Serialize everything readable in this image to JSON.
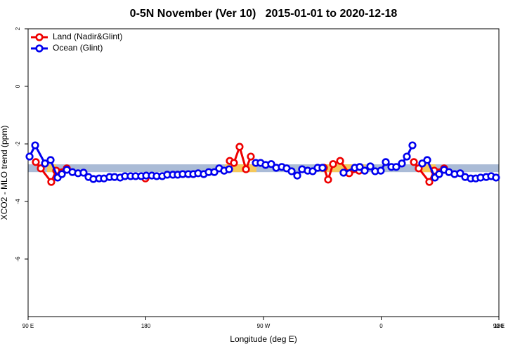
{
  "chart_data": {
    "type": "line",
    "title": "0-5N November (Ver 10)   2015-01-01 to 2020-12-18",
    "x_label": "Longitude (deg E)",
    "y_label": "XCO2 - MLO trend (ppm)",
    "xlim": [
      90,
      450
    ],
    "xticks": [
      {
        "value": 90,
        "label": "90 E"
      },
      180,
      {
        "value": 270,
        "label": "90 W"
      },
      {
        "value": 360,
        "label": "0"
      },
      {
        "value": 450,
        "label": "90 E"
      },
      {
        "value": 450,
        "label": "180"
      }
    ],
    "ylim": [
      -8,
      2
    ],
    "yticks": [
      2,
      0,
      -2,
      -4,
      -6
    ],
    "legend": "top-left",
    "band": {
      "range": [
        -2.98,
        -2.71
      ],
      "color": "#aabbd6",
      "land_color": "#f5c85a",
      "land_spans": [
        [
          104.5,
          111.5
        ],
        [
          240.5,
          264.6
        ],
        [
          313,
          348
        ],
        [
          388,
          401.6
        ]
      ]
    },
    "series": [
      {
        "name": "Land (Nadir&Glint)",
        "color": "#ee0000",
        "x": [
          95.9,
          99.7,
          107.7,
          111.5,
          119.6,
          null,
          179.7,
          null,
          244.2,
          247.4,
          251.7,
          256.6,
          260.3,
          null,
          316.2,
          319.4,
          323.2,
          328.6,
          335.5,
          343.1,
          null,
          385.0,
          388.7,
          396.8,
          400.6,
          408.1
        ],
        "values": [
          -2.63,
          -2.85,
          -3.32,
          -2.93,
          -2.85,
          null,
          -3.2,
          null,
          -2.59,
          -2.66,
          -2.1,
          -2.88,
          -2.44,
          null,
          -2.83,
          -3.24,
          -2.7,
          -2.59,
          -3.02,
          -2.93,
          null,
          -2.63,
          -2.85,
          -3.32,
          -2.93,
          -2.85
        ]
      },
      {
        "name": "Ocean (Glint)",
        "color": "#0000ee",
        "x": [
          91.1,
          95.4,
          102.9,
          107.2,
          112.6,
          115.8,
          119.6,
          123.9,
          128.2,
          132.4,
          136.2,
          139.9,
          144.3,
          148.0,
          152.3,
          156.1,
          160.4,
          164.1,
          168.4,
          172.2,
          176.5,
          180.3,
          184.6,
          188.3,
          192.6,
          196.4,
          200.7,
          204.4,
          208.2,
          212.5,
          216.3,
          220.0,
          224.3,
          228.1,
          232.4,
          236.1,
          239.9,
          243.7,
          null,
          264.1,
          267.8,
          271.6,
          275.9,
          279.7,
          284.0,
          287.7,
          291.5,
          295.8,
          299.5,
          303.8,
          307.6,
          311.4,
          315.1,
          null,
          331.2,
          339.8,
          343.6,
          347.4,
          351.7,
          355.4,
          359.7,
          363.5,
          367.8,
          371.5,
          375.8,
          379.6,
          383.9,
          null,
          391.4,
          395.2,
          401.1,
          404.3,
          408.1,
          411.8,
          416.1,
          420.4,
          424.2,
          428.5,
          432.3,
          436.0,
          440.3,
          444.1,
          447.8
        ],
        "values": [
          -2.44,
          -2.05,
          -2.68,
          -2.56,
          -3.17,
          -3.05,
          -2.9,
          -2.98,
          -3.02,
          -3.0,
          -3.15,
          -3.22,
          -3.2,
          -3.2,
          -3.15,
          -3.15,
          -3.17,
          -3.12,
          -3.12,
          -3.12,
          -3.12,
          -3.1,
          -3.1,
          -3.12,
          -3.12,
          -3.07,
          -3.07,
          -3.07,
          -3.05,
          -3.05,
          -3.05,
          -3.02,
          -3.05,
          -2.98,
          -2.98,
          -2.85,
          -2.93,
          -2.88,
          null,
          -2.66,
          -2.66,
          -2.73,
          -2.7,
          -2.83,
          -2.8,
          -2.85,
          -2.95,
          -3.1,
          -2.88,
          -2.93,
          -2.95,
          -2.83,
          -2.83,
          null,
          -3.0,
          -2.83,
          -2.8,
          -2.93,
          -2.78,
          -2.95,
          -2.93,
          -2.63,
          -2.8,
          -2.8,
          -2.68,
          -2.44,
          -2.05,
          null,
          -2.68,
          -2.56,
          -3.17,
          -3.05,
          -2.9,
          -2.98,
          -3.05,
          -3.02,
          -3.15,
          -3.2,
          -3.2,
          -3.17,
          -3.15,
          -3.12,
          -3.17
        ]
      }
    ]
  }
}
